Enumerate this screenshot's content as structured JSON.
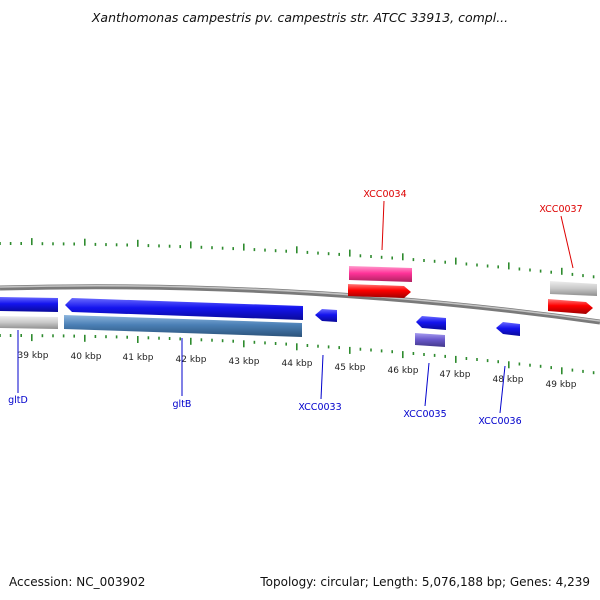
{
  "header": {
    "title": "Xanthomonas campestris pv. campestris str. ATCC 33913, compl..."
  },
  "footer": {
    "accession": "Accession: NC_003902",
    "summary": "Topology: circular; Length: 5,076,188 bp; Genes: 4,239"
  },
  "colors": {
    "backbone": "#8a8a8a",
    "tick": "#2e8b2e",
    "gene_forward": "#ff0000",
    "gene_reverse": "#1010ee",
    "gene_pink": "#ff3399",
    "gene_grey": "#bbbbbb",
    "gene_steel": "#4a7fb5",
    "gene_purple": "#6a5acd",
    "label_blue": "#0000cc",
    "label_red": "#dd0000"
  },
  "scale": {
    "unit": "kbp",
    "ticks": [
      "39 kbp",
      "40 kbp",
      "41 kbp",
      "42 kbp",
      "43 kbp",
      "44 kbp",
      "45 kbp",
      "46 kbp",
      "47 kbp",
      "48 kbp",
      "49 kbp"
    ]
  },
  "gene_labels": [
    {
      "text": "gltD",
      "color": "blue"
    },
    {
      "text": "gltB",
      "color": "blue"
    },
    {
      "text": "XCC0033",
      "color": "blue"
    },
    {
      "text": "XCC0034",
      "color": "red"
    },
    {
      "text": "XCC0035",
      "color": "blue"
    },
    {
      "text": "XCC0036",
      "color": "blue"
    },
    {
      "text": "XCC0037",
      "color": "red"
    }
  ]
}
